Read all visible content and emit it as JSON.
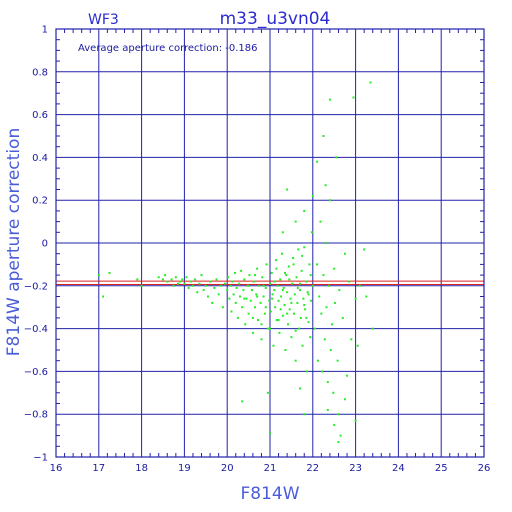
{
  "chart_data": {
    "type": "scatter",
    "title": "m33_u3vn04",
    "subtitle": "WF3",
    "annotation": "Average aperture correction: -0.186",
    "xlabel": "F814W",
    "ylabel": "F814W aperture correction",
    "xlim": [
      16,
      26
    ],
    "ylim": [
      -1,
      1
    ],
    "x_ticks": [
      16,
      17,
      18,
      19,
      20,
      21,
      22,
      23,
      24,
      25,
      26
    ],
    "y_ticks": [
      -1,
      -0.8,
      -0.6,
      -0.4,
      -0.2,
      0,
      0.2,
      0.4,
      0.6,
      0.8,
      1
    ],
    "x_tick_labels": [
      "16",
      "17",
      "18",
      "19",
      "20",
      "21",
      "22",
      "23",
      "24",
      "25",
      "26"
    ],
    "y_tick_labels": [
      "−1",
      "−0.8",
      "−0.6",
      "−0.4",
      "−0.2",
      "0",
      "0.2",
      "0.4",
      "0.6",
      "0.8",
      "1"
    ],
    "grid": true,
    "reference_lines": [
      -0.178,
      -0.194
    ],
    "colors": {
      "frame": "#2222aa",
      "grid": "#2222aa",
      "points": "#22ee22",
      "reference": "#dd2222"
    },
    "points": [
      [
        17.0,
        -0.15
      ],
      [
        17.1,
        -0.25
      ],
      [
        17.25,
        -0.14
      ],
      [
        17.9,
        -0.17
      ],
      [
        18.0,
        -0.2
      ],
      [
        18.4,
        -0.16
      ],
      [
        18.5,
        -0.17
      ],
      [
        18.55,
        -0.15
      ],
      [
        18.6,
        -0.18
      ],
      [
        18.7,
        -0.17
      ],
      [
        18.75,
        -0.2
      ],
      [
        18.8,
        -0.16
      ],
      [
        18.85,
        -0.19
      ],
      [
        18.9,
        -0.18
      ],
      [
        18.95,
        -0.17
      ],
      [
        19.0,
        -0.19
      ],
      [
        19.05,
        -0.16
      ],
      [
        19.1,
        -0.21
      ],
      [
        19.15,
        -0.18
      ],
      [
        19.2,
        -0.2
      ],
      [
        19.25,
        -0.17
      ],
      [
        19.3,
        -0.23
      ],
      [
        19.35,
        -0.19
      ],
      [
        19.4,
        -0.15
      ],
      [
        19.45,
        -0.22
      ],
      [
        19.5,
        -0.2
      ],
      [
        19.55,
        -0.25
      ],
      [
        19.6,
        -0.18
      ],
      [
        19.65,
        -0.28
      ],
      [
        19.7,
        -0.21
      ],
      [
        19.75,
        -0.17
      ],
      [
        19.8,
        -0.24
      ],
      [
        19.85,
        -0.2
      ],
      [
        19.9,
        -0.3
      ],
      [
        19.95,
        -0.19
      ],
      [
        20.0,
        -0.22
      ],
      [
        20.02,
        -0.16
      ],
      [
        20.05,
        -0.26
      ],
      [
        20.08,
        -0.2
      ],
      [
        20.1,
        -0.32
      ],
      [
        20.12,
        -0.18
      ],
      [
        20.15,
        -0.24
      ],
      [
        20.18,
        -0.14
      ],
      [
        20.2,
        -0.28
      ],
      [
        20.22,
        -0.21
      ],
      [
        20.25,
        -0.35
      ],
      [
        20.28,
        -0.19
      ],
      [
        20.3,
        -0.25
      ],
      [
        20.32,
        -0.13
      ],
      [
        20.35,
        -0.3
      ],
      [
        20.38,
        -0.22
      ],
      [
        20.4,
        -0.17
      ],
      [
        20.42,
        -0.38
      ],
      [
        20.45,
        -0.26
      ],
      [
        20.48,
        -0.2
      ],
      [
        20.5,
        -0.33
      ],
      [
        20.52,
        -0.15
      ],
      [
        20.55,
        -0.27
      ],
      [
        20.58,
        -0.22
      ],
      [
        20.6,
        -0.42
      ],
      [
        20.62,
        -0.18
      ],
      [
        20.65,
        -0.3
      ],
      [
        20.68,
        -0.24
      ],
      [
        20.7,
        -0.12
      ],
      [
        20.72,
        -0.36
      ],
      [
        20.75,
        -0.2
      ],
      [
        20.78,
        -0.28
      ],
      [
        20.8,
        -0.45
      ],
      [
        20.82,
        -0.16
      ],
      [
        20.85,
        -0.25
      ],
      [
        20.88,
        -0.33
      ],
      [
        20.9,
        -0.21
      ],
      [
        20.92,
        -0.1
      ],
      [
        20.95,
        -0.4
      ],
      [
        20.98,
        -0.27
      ],
      [
        21.0,
        -0.19
      ],
      [
        21.02,
        -0.32
      ],
      [
        21.04,
        -0.14
      ],
      [
        21.06,
        -0.24
      ],
      [
        21.08,
        -0.48
      ],
      [
        21.1,
        -0.22
      ],
      [
        21.12,
        -0.3
      ],
      [
        21.14,
        -0.08
      ],
      [
        21.16,
        -0.36
      ],
      [
        21.18,
        -0.2
      ],
      [
        21.2,
        -0.27
      ],
      [
        21.22,
        -0.42
      ],
      [
        21.24,
        -0.17
      ],
      [
        21.26,
        -0.25
      ],
      [
        21.28,
        -0.05
      ],
      [
        21.3,
        -0.34
      ],
      [
        21.32,
        -0.21
      ],
      [
        21.34,
        -0.29
      ],
      [
        21.36,
        -0.5
      ],
      [
        21.38,
        -0.15
      ],
      [
        21.4,
        -0.23
      ],
      [
        21.42,
        -0.38
      ],
      [
        21.44,
        -0.11
      ],
      [
        21.46,
        -0.31
      ],
      [
        21.48,
        -0.26
      ],
      [
        21.5,
        -0.44
      ],
      [
        21.52,
        -0.19
      ],
      [
        21.54,
        -0.07
      ],
      [
        21.56,
        -0.33
      ],
      [
        21.58,
        -0.24
      ],
      [
        21.6,
        -0.55
      ],
      [
        21.62,
        -0.16
      ],
      [
        21.64,
        -0.28
      ],
      [
        21.66,
        -0.03
      ],
      [
        21.68,
        -0.4
      ],
      [
        21.7,
        -0.22
      ],
      [
        21.72,
        -0.35
      ],
      [
        21.74,
        -0.13
      ],
      [
        21.76,
        -0.48
      ],
      [
        21.78,
        -0.26
      ],
      [
        21.8,
        -0.02
      ],
      [
        21.82,
        -0.31
      ],
      [
        21.84,
        -0.18
      ],
      [
        21.86,
        -0.6
      ],
      [
        21.88,
        -0.23
      ],
      [
        21.9,
        -0.37
      ],
      [
        21.92,
        -0.1
      ],
      [
        21.94,
        -0.44
      ],
      [
        21.96,
        -0.27
      ],
      [
        21.98,
        0.05
      ],
      [
        20.5,
        -0.2
      ],
      [
        20.7,
        -0.25
      ],
      [
        20.9,
        -0.3
      ],
      [
        21.1,
        -0.18
      ],
      [
        21.3,
        -0.22
      ],
      [
        21.5,
        -0.28
      ],
      [
        21.7,
        -0.19
      ],
      [
        21.9,
        -0.24
      ],
      [
        20.6,
        -0.35
      ],
      [
        20.8,
        -0.38
      ],
      [
        21.0,
        -0.4
      ],
      [
        21.2,
        -0.36
      ],
      [
        21.4,
        -0.33
      ],
      [
        21.6,
        -0.41
      ],
      [
        21.8,
        -0.29
      ],
      [
        20.4,
        -0.26
      ],
      [
        20.65,
        -0.15
      ],
      [
        20.85,
        -0.2
      ],
      [
        21.05,
        -0.26
      ],
      [
        21.25,
        -0.31
      ],
      [
        21.45,
        -0.17
      ],
      [
        21.65,
        -0.21
      ],
      [
        21.85,
        -0.35
      ],
      [
        21.15,
        -0.12
      ],
      [
        21.35,
        -0.14
      ],
      [
        21.55,
        -0.1
      ],
      [
        21.75,
        -0.06
      ],
      [
        21.95,
        -0.15
      ],
      [
        22.0,
        -0.2
      ],
      [
        22.05,
        -0.4
      ],
      [
        22.1,
        -0.1
      ],
      [
        22.12,
        -0.55
      ],
      [
        22.15,
        -0.25
      ],
      [
        22.18,
        0.1
      ],
      [
        22.2,
        -0.33
      ],
      [
        22.22,
        -0.6
      ],
      [
        22.25,
        -0.15
      ],
      [
        22.28,
        -0.45
      ],
      [
        22.3,
        0.0
      ],
      [
        22.32,
        -0.3
      ],
      [
        22.35,
        -0.65
      ],
      [
        22.38,
        -0.2
      ],
      [
        22.4,
        0.2
      ],
      [
        22.42,
        -0.5
      ],
      [
        22.45,
        -0.38
      ],
      [
        22.48,
        -0.7
      ],
      [
        22.5,
        -0.12
      ],
      [
        22.52,
        -0.28
      ],
      [
        22.55,
        0.4
      ],
      [
        22.58,
        -0.55
      ],
      [
        22.6,
        -0.8
      ],
      [
        22.62,
        -0.22
      ],
      [
        22.65,
        -0.9
      ],
      [
        22.7,
        -0.35
      ],
      [
        22.75,
        -0.05
      ],
      [
        22.8,
        -0.62
      ],
      [
        22.85,
        -0.18
      ],
      [
        22.9,
        -0.45
      ],
      [
        22.95,
        0.68
      ],
      [
        23.0,
        -0.26
      ],
      [
        23.05,
        -0.48
      ],
      [
        23.1,
        -0.2
      ],
      [
        23.2,
        -0.03
      ],
      [
        23.25,
        -0.25
      ],
      [
        23.35,
        0.75
      ],
      [
        23.4,
        -0.4
      ],
      [
        22.4,
        0.67
      ],
      [
        22.3,
        0.27
      ],
      [
        22.25,
        0.5
      ],
      [
        21.4,
        0.25
      ],
      [
        21.8,
        0.15
      ],
      [
        22.1,
        0.38
      ],
      [
        22.0,
        0.22
      ],
      [
        21.6,
        0.1
      ],
      [
        21.3,
        0.05
      ],
      [
        22.35,
        -0.78
      ],
      [
        22.6,
        -0.93
      ],
      [
        21.8,
        -0.8
      ],
      [
        21.0,
        -0.89
      ],
      [
        20.35,
        -0.74
      ],
      [
        20.95,
        -0.7
      ],
      [
        21.7,
        -0.68
      ],
      [
        22.5,
        -0.85
      ],
      [
        23.0,
        -0.83
      ],
      [
        22.75,
        -0.73
      ]
    ]
  }
}
